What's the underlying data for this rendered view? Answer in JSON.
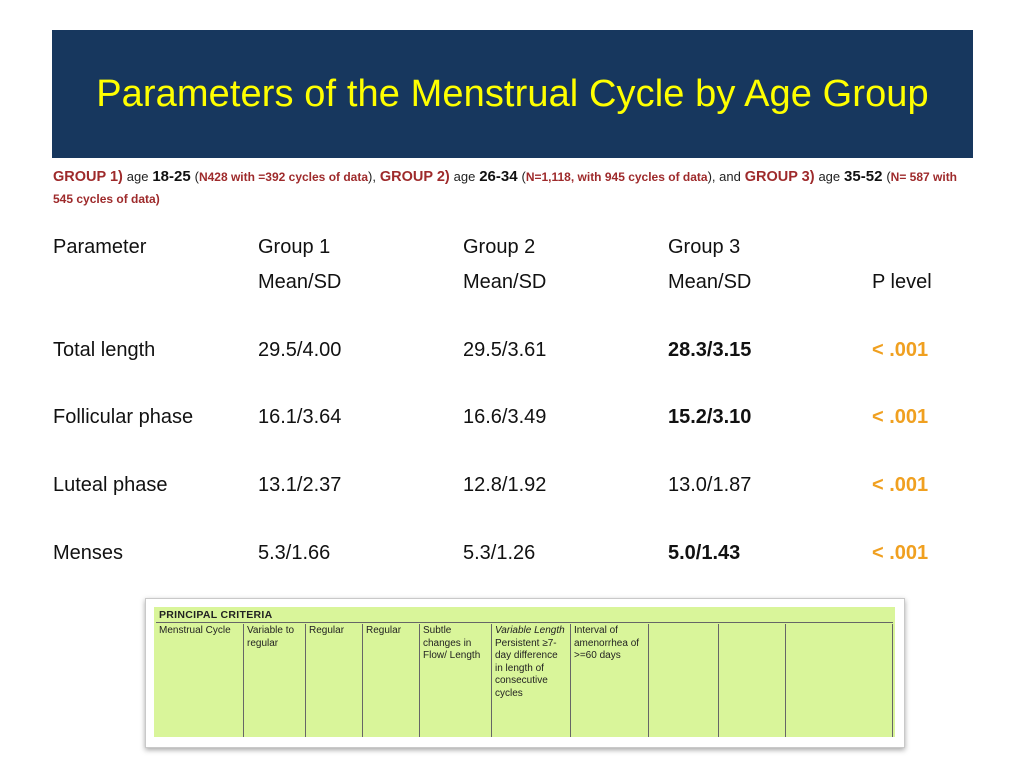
{
  "title": "Parameters of the Menstrual Cycle by Age Group",
  "subtitle": {
    "g1_label": "GROUP 1)",
    "g1_age_word": "age",
    "g1_age": "18-25",
    "g1_open": "(",
    "g1_n": "N428 with =392 cycles of data",
    "g1_close": "),",
    "g2_label": "GROUP 2)",
    "g2_age_word": "age",
    "g2_age": "26-34",
    "g2_open": "(",
    "g2_n": "N=1,118, with 945 cycles of data",
    "g2_close": "), and",
    "g3_label": "GROUP 3)",
    "g3_age_word": "age",
    "g3_age": "35-52",
    "g3_open": "(",
    "g3_n": "N= 587 with 545 cycles of data)"
  },
  "table": {
    "header_row1": [
      "Parameter",
      "Group 1",
      "Group 2",
      "Group 3",
      ""
    ],
    "header_row2": [
      "",
      "Mean/SD",
      "Mean/SD",
      "Mean/SD",
      "P level"
    ],
    "rows": [
      {
        "parameter": "Total length",
        "g1": "29.5/4.00",
        "g2": "29.5/3.61",
        "g3": "28.3/3.15",
        "g3_bold": true,
        "p": "< .001"
      },
      {
        "parameter": "Follicular phase",
        "g1": "16.1/3.64",
        "g2": "16.6/3.49",
        "g3": "15.2/3.10",
        "g3_bold": true,
        "p": "< .001"
      },
      {
        "parameter": "Luteal phase",
        "g1": "13.1/2.37",
        "g2": "12.8/1.92",
        "g3": "13.0/1.87",
        "g3_bold": false,
        "p": "< .001"
      },
      {
        "parameter": "Menses",
        "g1": "5.3/1.66",
        "g2": "5.3/1.26",
        "g3": "5.0/1.43",
        "g3_bold": true,
        "p": "< .001"
      }
    ]
  },
  "criteria": {
    "heading": "PRINCIPAL CRITERIA",
    "cells": [
      {
        "text": "Menstrual Cycle",
        "italic_prefix": ""
      },
      {
        "text": "Variable to regular",
        "italic_prefix": ""
      },
      {
        "text": "Regular",
        "italic_prefix": ""
      },
      {
        "text": "Regular",
        "italic_prefix": ""
      },
      {
        "text": "Subtle changes in Flow/ Length",
        "italic_prefix": ""
      },
      {
        "text": "Persistent ≥7- day difference in length of consecutive cycles",
        "italic_prefix": "Variable Length"
      },
      {
        "text": "Interval of amenorrhea of >=60 days",
        "italic_prefix": ""
      },
      {
        "text": "",
        "italic_prefix": ""
      },
      {
        "text": "",
        "italic_prefix": ""
      },
      {
        "text": "",
        "italic_prefix": ""
      }
    ]
  },
  "colors": {
    "title_bg": "#17375e",
    "title_text": "#ffff00",
    "group_label": "#9e2a2b",
    "p_level": "#f0a020",
    "criteria_bg": "#d9f59a"
  }
}
